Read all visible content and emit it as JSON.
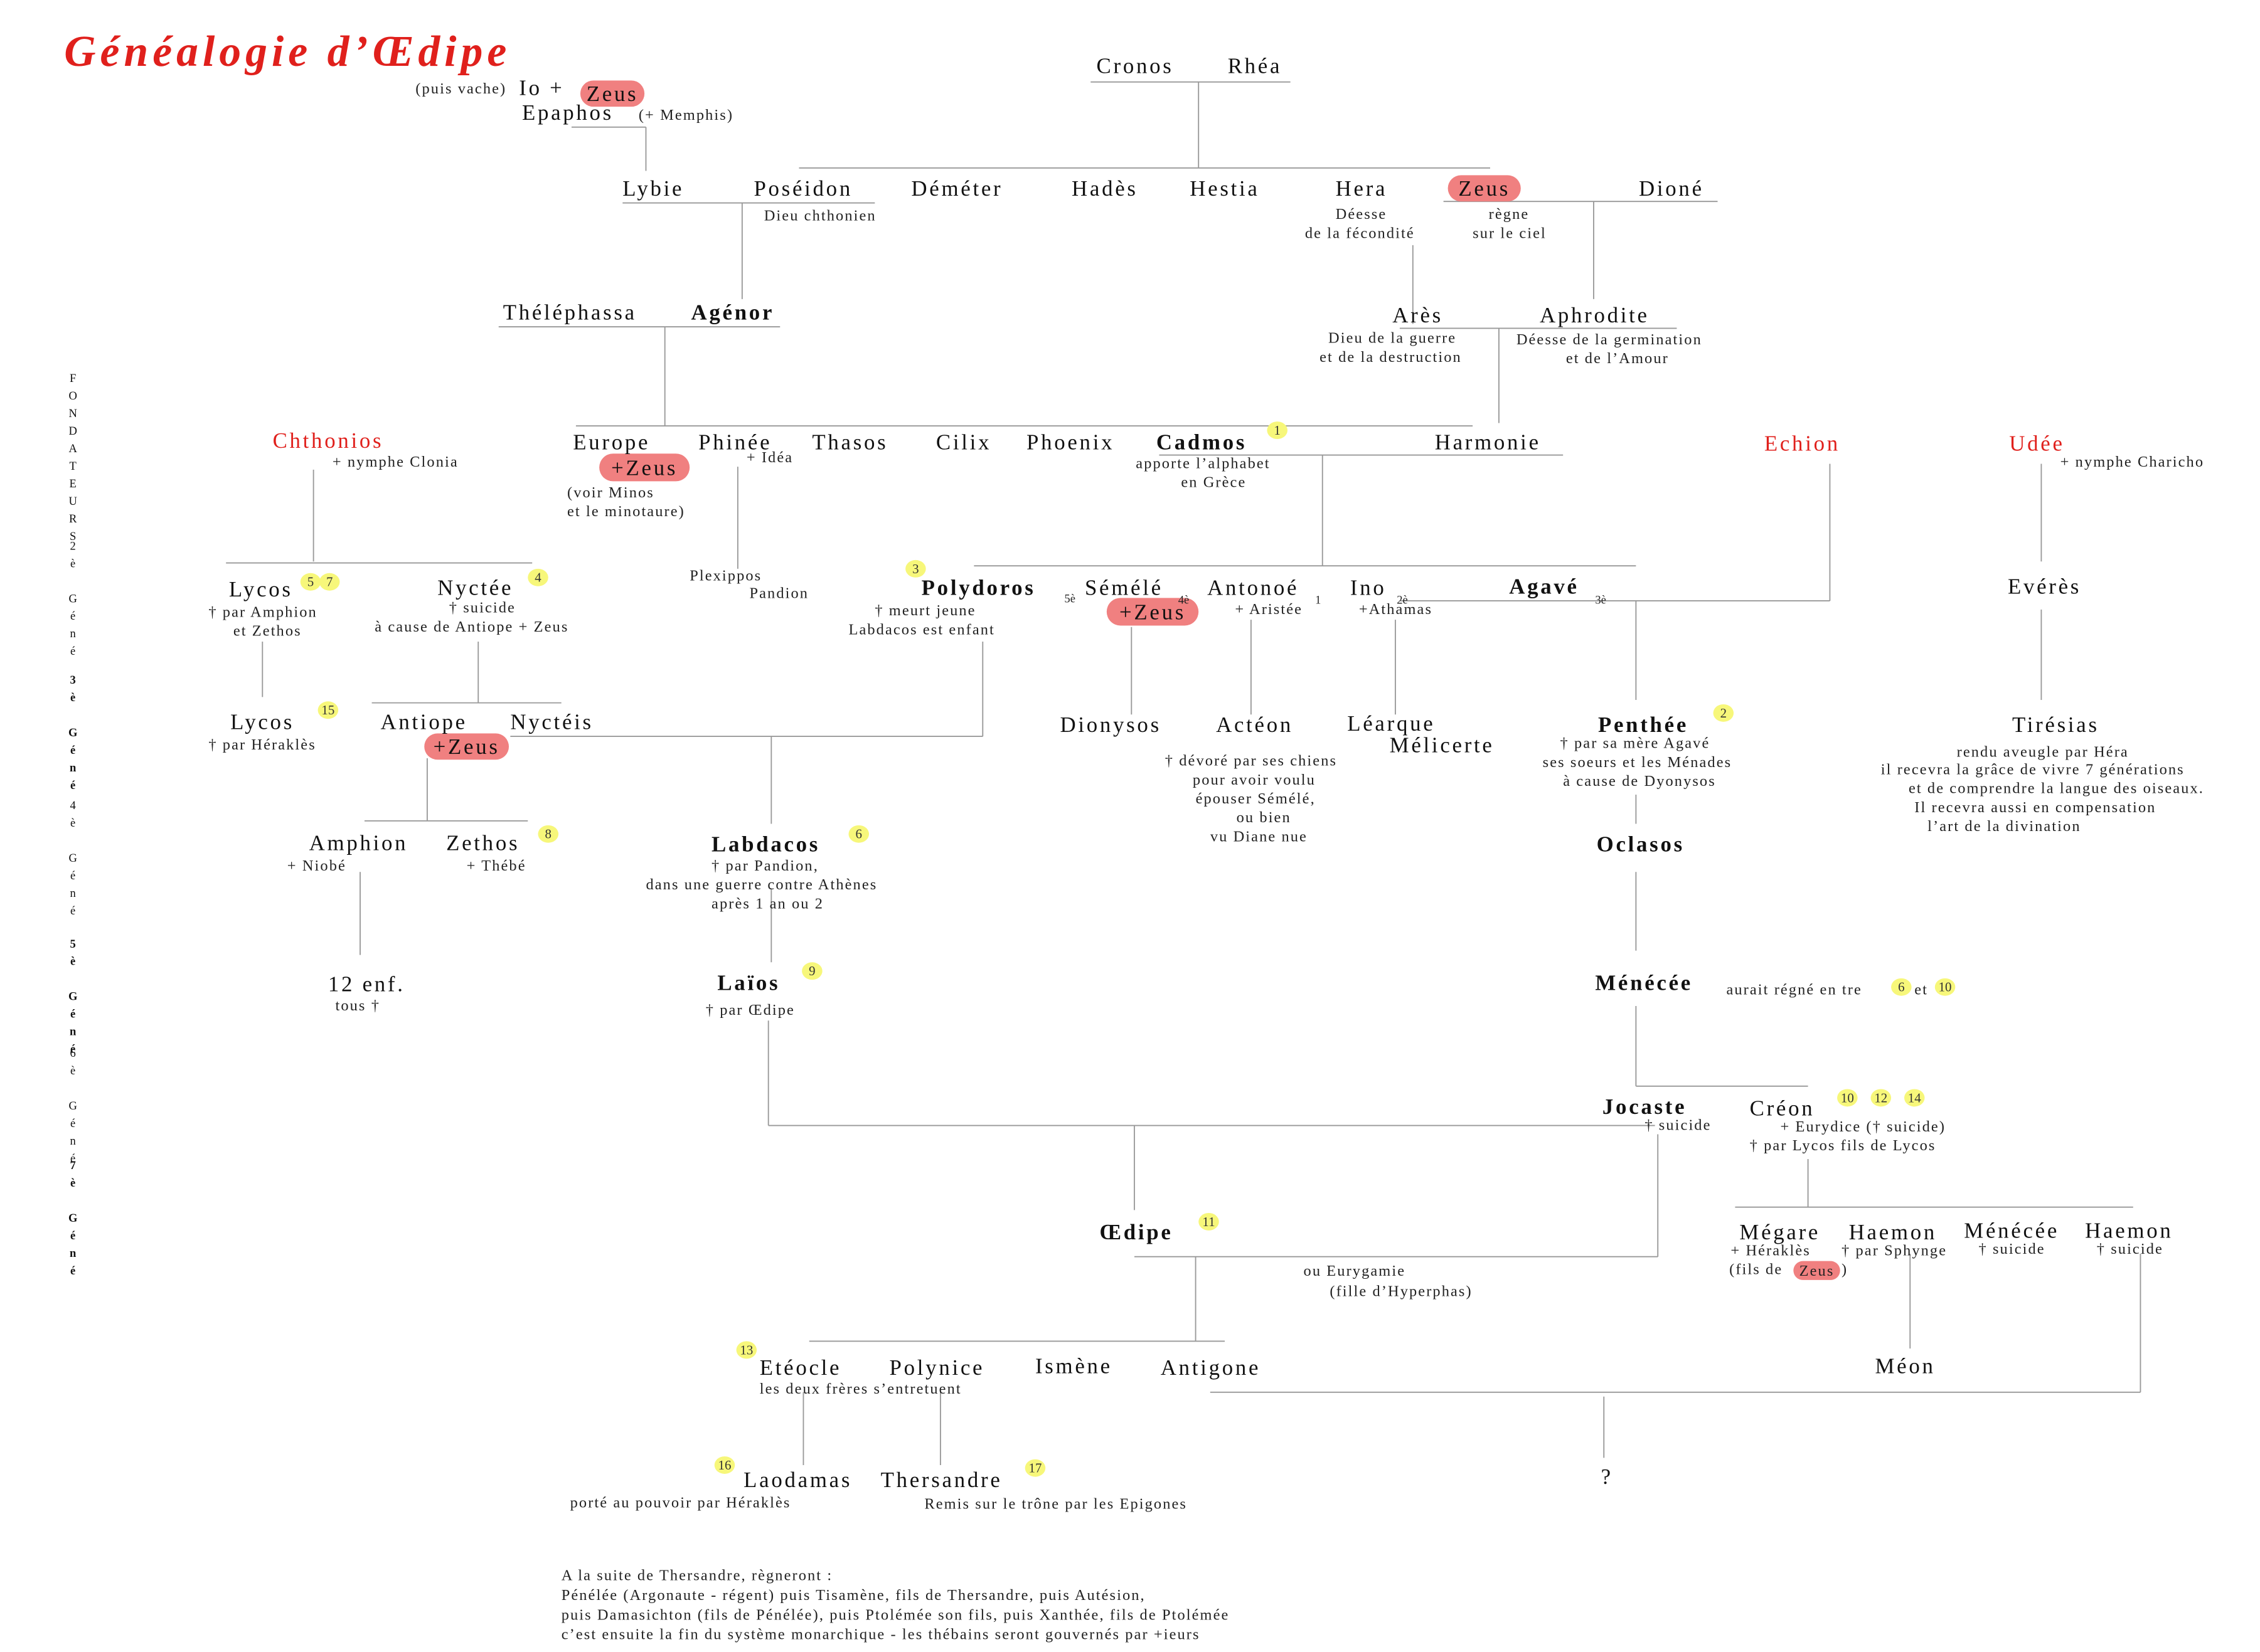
{
  "title": "Généalogie d’Œdipe",
  "generations": [
    "FONDATEURS",
    "2è Géné",
    "3è Géné",
    "4è Géné",
    "5è Géné",
    "6è Géné",
    "7è Géné"
  ],
  "labels": [
    "(puis vache)",
    "Io +",
    "Epaphos",
    "(+ Memphis)",
    "Cronos",
    "Rhéa",
    "Lybie",
    "Poséidon",
    "Dieu chthonien",
    "Déméter",
    "Hadès",
    "Hestia",
    "Hera",
    "Déesse",
    "de la fécondité",
    "règne",
    "sur le ciel",
    "Dioné",
    "Théléphassa",
    "Agénor",
    "Arès",
    "Dieu de la guerre",
    "et de la destruction",
    "Aphrodite",
    "Déesse de la germination",
    "et de l’Amour",
    "Chthonios",
    "+ nymphe Clonia",
    "Europe",
    "(voir Minos",
    "et le minotaure)",
    "Phinée",
    "+ Idéa",
    "Thasos",
    "Cilix",
    "Phoenix",
    "Cadmos",
    "apporte l’alphabet",
    "en Grèce",
    "Harmonie",
    "Echion",
    "Udée",
    "+ nymphe Charicho",
    "Lycos",
    "† par Amphion",
    "et Zethos",
    "Nyctée",
    "† suicide",
    "à cause de Antiope + Zeus",
    "Plexippos",
    "Pandion",
    "Polydoros",
    "5è",
    "† meurt jeune",
    "Labdacos est enfant",
    "Sémélé",
    "4è",
    "Antonoé",
    "1",
    "+ Aristée",
    "Ino",
    "2è",
    "+Athamas",
    "Agavé",
    "3è",
    "Evérès",
    "Lycos",
    "† par Héraklès",
    "Antiope",
    "Nyctéis",
    "Dionysos",
    "Actéon",
    "Léarque",
    "Mélicerte",
    "† dévoré par ses chiens",
    "pour avoir voulu",
    "épouser Sémélé,",
    "ou bien",
    "vu Diane nue",
    "Penthée",
    "† par sa mère Agavé",
    "ses soeurs et les Ménades",
    "à cause de Dyonysos",
    "Tirésias",
    "rendu aveugle par Héra",
    "il recevra la grâce de vivre 7 générations",
    "et de comprendre la langue des oiseaux.",
    "Il recevra aussi en compensation",
    "l’art de la divination",
    "Amphion",
    "+ Niobé",
    "Zethos",
    "+ Thébé",
    "Labdacos",
    "† par Pandion,",
    "dans une guerre contre Athènes",
    "après 1 an ou 2",
    "Oclasos",
    "12 enf.",
    "tous †",
    "Laïos",
    "† par Œdipe",
    "Ménécée",
    "aurait régné en tre",
    "et",
    "Jocaste",
    "† suicide",
    "Créon",
    "+ Eurydice († suicide)",
    "† par Lycos fils de Lycos",
    "Œdipe",
    "ou Eurygamie",
    "(fille d’Hyperphas)",
    "Mégare",
    "+ Héraklès",
    "(fils de",
    "Haemon",
    "† par Sphynge",
    "Ménécée",
    "† suicide",
    "Haemon",
    "† suicide",
    "Etéocle",
    "les deux frères s’entretuent",
    "Polynice",
    "Ismène",
    "Antigone",
    "Méon",
    "Laodamas",
    "porté au pouvoir par Héraklès",
    "Thersandre",
    "Remis sur le trône par les Epigones",
    "?",
    ")"
  ],
  "highlights": [
    "Zeus",
    "Zeus",
    "+Zeus",
    "+Zeus",
    "+Zeus",
    "Zeus"
  ],
  "badges": [
    1,
    5,
    7,
    4,
    3,
    15,
    2,
    8,
    6,
    9,
    6,
    10,
    10,
    12,
    14,
    11,
    13,
    16,
    17
  ],
  "footer": [
    "A la suite de Thersandre, règneront :",
    "Pénélée (Argonaute - régent) puis Tisamène, fils de Thersandre, puis Autésion,",
    "puis Damasichton (fils de Pénélée), puis Ptolémée son fils, puis Xanthée, fils de Ptolémée",
    "c’est ensuite la fin du système monarchique - les thébains seront gouvernés par +ieurs"
  ]
}
